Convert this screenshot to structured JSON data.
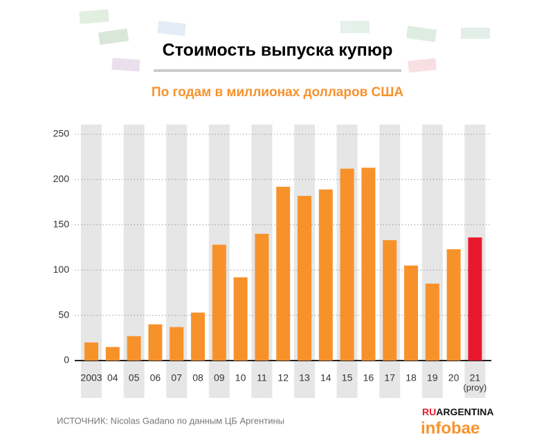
{
  "chart_data": {
    "type": "bar",
    "title": "Стоимость выпуска купюр",
    "subtitle": "По годам в миллионах долларов США",
    "categories": [
      "2003",
      "04",
      "05",
      "06",
      "07",
      "08",
      "09",
      "10",
      "11",
      "12",
      "13",
      "14",
      "15",
      "16",
      "17",
      "18",
      "19",
      "20",
      "21"
    ],
    "values": [
      20,
      15,
      27,
      40,
      37,
      53,
      128,
      92,
      140,
      192,
      182,
      189,
      212,
      213,
      133,
      105,
      85,
      123,
      136
    ],
    "colors": [
      "#f7922b",
      "#f7922b",
      "#f7922b",
      "#f7922b",
      "#f7922b",
      "#f7922b",
      "#f7922b",
      "#f7922b",
      "#f7922b",
      "#f7922b",
      "#f7922b",
      "#f7922b",
      "#f7922b",
      "#f7922b",
      "#f7922b",
      "#f7922b",
      "#f7922b",
      "#f7922b",
      "#e8192c"
    ],
    "annotation": "(proy)",
    "ylim": [
      0,
      250
    ],
    "yticks": [
      0,
      50,
      100,
      150,
      200,
      250
    ],
    "grid": true,
    "source": "ИСТОЧНИК: Nicolas Gadano по данным ЦБ Аргентины"
  },
  "branding": {
    "ru": "RU",
    "argentina": "ARGENTINA",
    "infobae": "infobae"
  }
}
